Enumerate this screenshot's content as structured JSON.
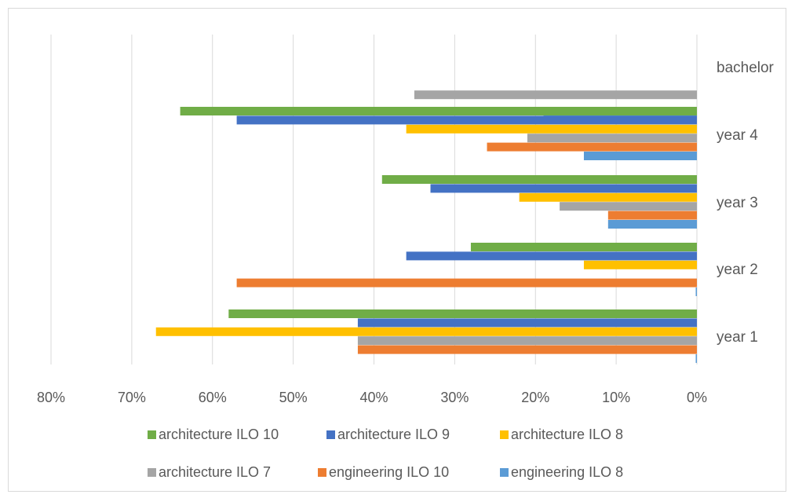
{
  "chart_data": {
    "type": "bar",
    "orientation": "horizontal",
    "x_axis_reversed": true,
    "xlim": [
      0,
      0.8
    ],
    "x_ticks": [
      0.8,
      0.7,
      0.6,
      0.5,
      0.4,
      0.3,
      0.2,
      0.1,
      0
    ],
    "x_tick_labels": [
      "80%",
      "70%",
      "60%",
      "50%",
      "40%",
      "30%",
      "20%",
      "10%",
      "0%"
    ],
    "grid": true,
    "legend_position": "bottom",
    "categories": [
      "bachelor",
      "year 4",
      "year 3",
      "year 2",
      "year 1"
    ],
    "series": [
      {
        "name": "architecture ILO 10",
        "color": "#70ad47",
        "values": [
          null,
          0.64,
          0.39,
          0.28,
          0.58
        ]
      },
      {
        "name": "architecture ILO 9",
        "color": "#4472c4",
        "values": [
          null,
          0.57,
          0.33,
          0.36,
          0.42
        ]
      },
      {
        "name": "architecture ILO 8",
        "color": "#ffc000",
        "values": [
          null,
          0.36,
          0.22,
          0.14,
          0.67
        ]
      },
      {
        "name": "architecture ILO 7",
        "color": "#a5a5a5",
        "values": [
          0.35,
          0.21,
          0.17,
          null,
          0.42
        ]
      },
      {
        "name": "engineering ILO 10",
        "color": "#ed7d31",
        "values": [
          null,
          0.26,
          0.11,
          0.57,
          0.42
        ]
      },
      {
        "name": "engineering ILO 8",
        "color": "#5b9bd5",
        "values": [
          0.19,
          0.14,
          0.11,
          0,
          0
        ]
      }
    ],
    "title": "",
    "xlabel": "",
    "ylabel": ""
  }
}
